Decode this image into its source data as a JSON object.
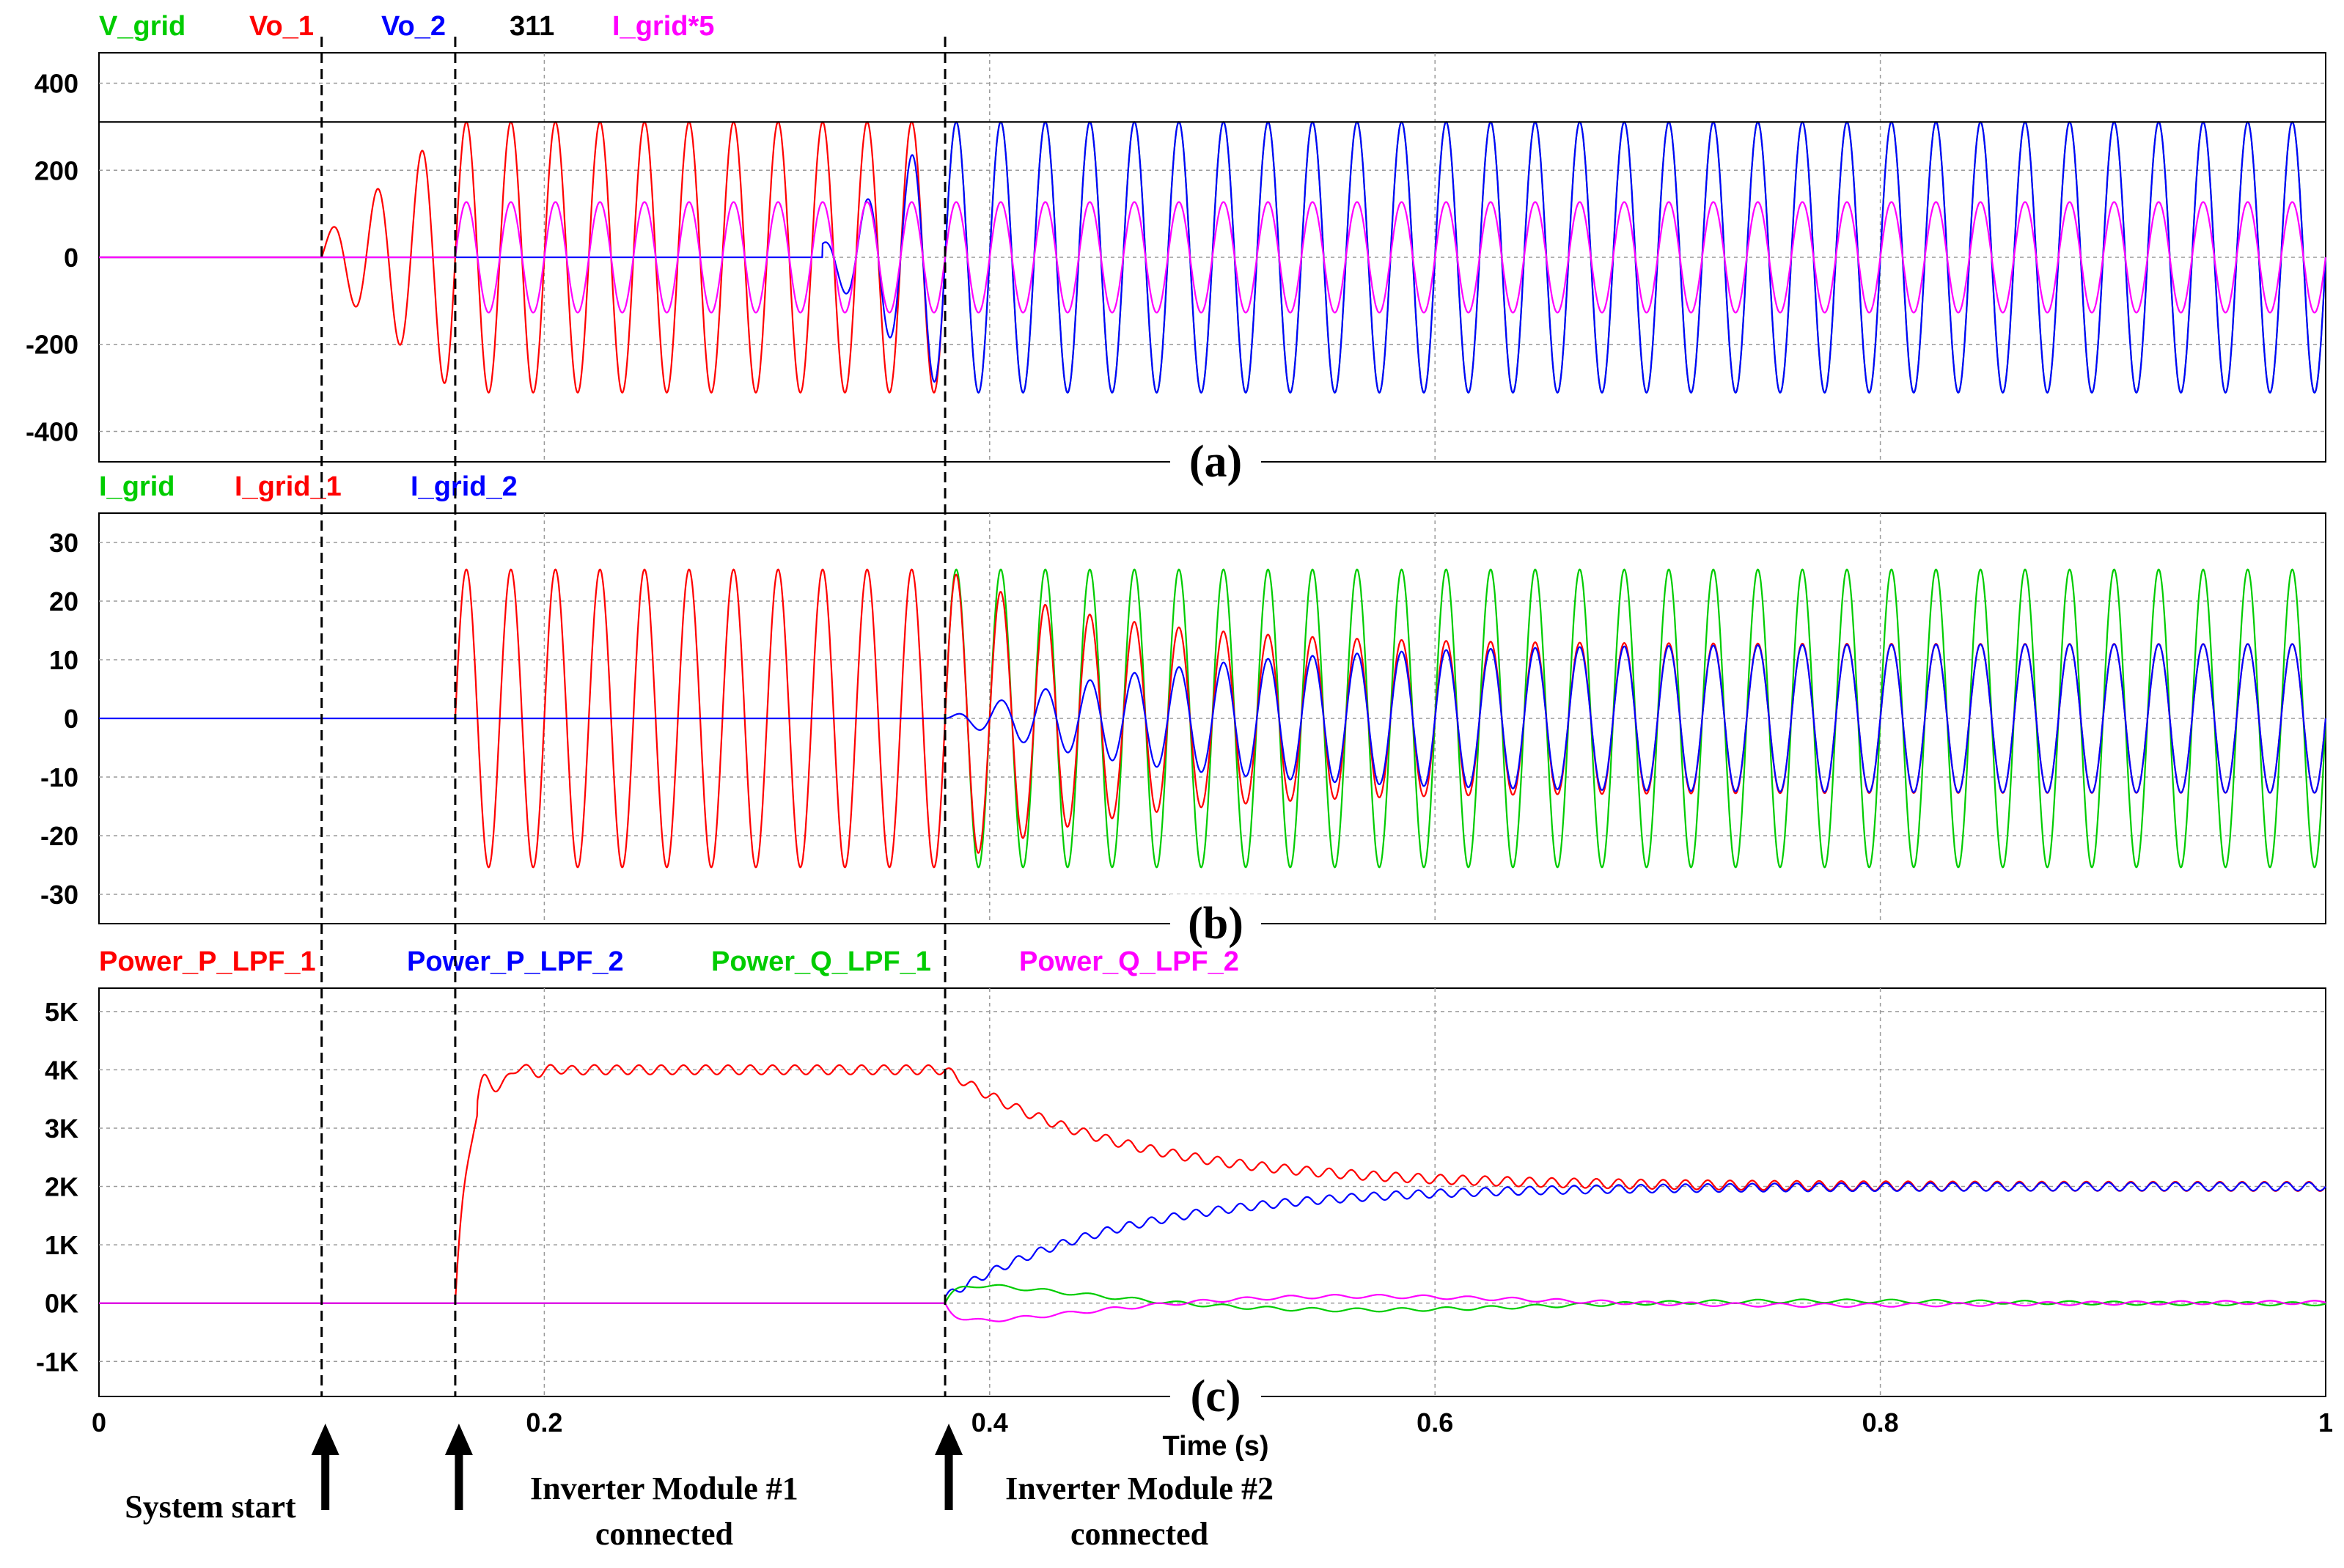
{
  "chart_data": [
    {
      "type": "line",
      "panel_label": "(a)",
      "ylim": [
        -470,
        470
      ],
      "xlim": [
        0,
        1
      ],
      "yticks": [
        400,
        200,
        0,
        -200,
        -400
      ],
      "grid": true,
      "legend_placement": "top-left above plot",
      "series": [
        {
          "name": "V_grid",
          "color": "#00cc00",
          "kind": "sine",
          "amplitude": 311,
          "start": 0.0,
          "ramp_end": 0.0,
          "visible_from": 0.38
        },
        {
          "name": "Vo_1",
          "color": "#ff0000",
          "kind": "sine",
          "amplitude": 311,
          "start": 0.1,
          "ramp_end": 0.16,
          "end": 0.38
        },
        {
          "name": "Vo_2",
          "color": "#0000ff",
          "kind": "sine",
          "amplitude": 311,
          "start": 0.325,
          "ramp_end": 0.38
        },
        {
          "name": "311",
          "color": "#000000",
          "kind": "constant",
          "value": 311
        },
        {
          "name": "I_grid*5",
          "color": "#ff00ff",
          "kind": "sine",
          "amplitude": 127,
          "start": 0.16
        }
      ]
    },
    {
      "type": "line",
      "panel_label": "(b)",
      "ylim": [
        -35,
        35
      ],
      "xlim": [
        0,
        1
      ],
      "yticks": [
        30,
        20,
        10,
        0,
        -10,
        -20,
        -30
      ],
      "grid": true,
      "legend_placement": "top-left above plot",
      "series": [
        {
          "name": "I_grid",
          "color": "#00cc00",
          "kind": "sine",
          "amplitude": 25.4,
          "start": 0.38
        },
        {
          "name": "I_grid_1",
          "color": "#ff0000",
          "kind": "sine",
          "amplitude_before": 25.4,
          "amplitude_after": 12.7,
          "start": 0.16,
          "transition": 0.38
        },
        {
          "name": "I_grid_2",
          "color": "#0000ff",
          "kind": "sine",
          "amplitude_after": 12.7,
          "start": 0.38
        }
      ]
    },
    {
      "type": "line",
      "panel_label": "(c)",
      "ylim": [
        -1600,
        5400
      ],
      "xlim": [
        0,
        1
      ],
      "yticks": [
        5000,
        4000,
        3000,
        2000,
        1000,
        0,
        -1000
      ],
      "ytick_labels": [
        "5K",
        "4K",
        "3K",
        "2K",
        "1K",
        "0K",
        "-1K"
      ],
      "xticks": [
        0,
        0.2,
        0.4,
        0.6,
        0.8,
        1
      ],
      "xtick_labels": [
        "0",
        "0.2",
        "0.4",
        "0.6",
        "0.8",
        "1"
      ],
      "xlabel": "Time (s)",
      "grid": true,
      "legend_placement": "top-left above plot",
      "series": [
        {
          "name": "Power_P_LPF_1",
          "color": "#ff0000",
          "kind": "power",
          "start": 0.16,
          "level1": 4000,
          "transition": 0.38,
          "level2": 2000
        },
        {
          "name": "Power_P_LPF_2",
          "color": "#0000ff",
          "kind": "power",
          "start": 0.38,
          "level2": 2000
        },
        {
          "name": "Power_Q_LPF_1",
          "color": "#00cc00",
          "kind": "reactive",
          "start": 0.38,
          "sign": 1
        },
        {
          "name": "Power_Q_LPF_2",
          "color": "#ff00ff",
          "kind": "reactive",
          "start": 0.38,
          "sign": -1
        }
      ]
    }
  ],
  "events": [
    {
      "time": 0.1,
      "label_lines": [
        "System start"
      ]
    },
    {
      "time": 0.16,
      "label_lines": [
        "Inverter Module #1",
        "connected"
      ]
    },
    {
      "time": 0.38,
      "label_lines": [
        "Inverter Module #2",
        "connected"
      ]
    }
  ]
}
